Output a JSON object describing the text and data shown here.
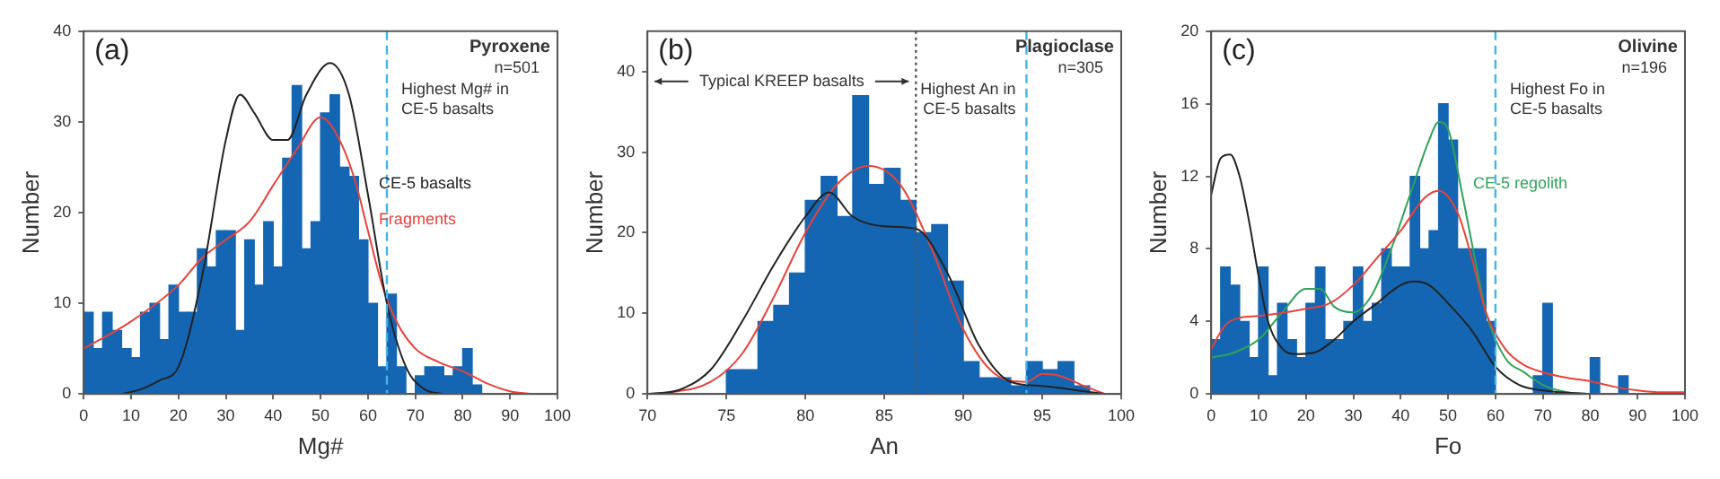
{
  "chart_data": [
    {
      "type": "histogram",
      "title": "(a)",
      "subtitle": "Pyroxene",
      "xlabel": "Mg#",
      "ylabel": "Number",
      "color": "#1466b3",
      "bins": [
        0,
        2,
        4,
        6,
        8,
        10,
        12,
        14,
        16,
        18,
        20,
        22,
        24,
        26,
        28,
        30,
        32,
        34,
        36,
        38,
        40,
        42,
        44,
        46,
        48,
        50,
        52,
        54,
        56,
        58,
        60,
        62,
        64,
        66,
        68,
        70,
        72,
        74,
        76,
        78,
        80,
        82,
        84
      ],
      "values": [
        9,
        5,
        9,
        7,
        5,
        4,
        9,
        10,
        6,
        12,
        9,
        9,
        16,
        14,
        18,
        18,
        7,
        17,
        12,
        19,
        14,
        26,
        34,
        16,
        19,
        31,
        33,
        25,
        24,
        17,
        10,
        3,
        11,
        3,
        0,
        2,
        3,
        3,
        2,
        3,
        5,
        1
      ],
      "series": [
        {
          "type": "line",
          "name": "CE-5 basalts",
          "color": "#222222",
          "x": [
            8,
            12,
            16,
            20,
            25,
            30,
            33,
            36,
            40,
            43,
            47,
            52,
            56,
            60,
            64,
            68,
            72,
            76
          ],
          "values": [
            0,
            0.5,
            1.5,
            3,
            13,
            28,
            33,
            31,
            28,
            28,
            33,
            36.5,
            33,
            22,
            10,
            3,
            0.5,
            0
          ]
        },
        {
          "type": "line",
          "name": "Fragments",
          "color": "#e8423a",
          "x": [
            0,
            10,
            20,
            25,
            30,
            35,
            40,
            45,
            50,
            53,
            57,
            60,
            63,
            66,
            70,
            75,
            80,
            85,
            90,
            95
          ],
          "values": [
            5,
            8,
            12,
            15,
            17,
            19,
            23,
            27,
            30.5,
            29,
            24,
            18,
            12,
            8,
            5,
            3.5,
            2.5,
            1.2,
            0.3,
            0
          ]
        }
      ],
      "xlim": [
        0,
        100
      ],
      "ylim": [
        0,
        40
      ],
      "xticks": [
        0,
        10,
        20,
        30,
        40,
        50,
        60,
        70,
        80,
        90,
        100
      ],
      "yticks": [
        0,
        10,
        20,
        30,
        40
      ],
      "ref_lines": [
        {
          "axis": "x",
          "value": 64,
          "label": "Highest Mg# in CE-5 basalts",
          "color": "#45b4e6",
          "line_style": "dashed"
        }
      ],
      "annotations": [
        "n=501"
      ],
      "grid": false,
      "legend": false
    },
    {
      "type": "histogram",
      "title": "(b)",
      "subtitle": "Plagioclase",
      "xlabel": "An",
      "ylabel": "Number",
      "color": "#1466b3",
      "bins": [
        75,
        76,
        77,
        78,
        79,
        80,
        81,
        82,
        83,
        84,
        85,
        86,
        87,
        88,
        89,
        90,
        91,
        92,
        93,
        94,
        95,
        96,
        97,
        98
      ],
      "values": [
        3,
        3,
        9,
        11,
        15,
        24,
        27,
        22,
        37,
        26,
        28,
        24,
        20,
        21,
        14,
        4,
        2,
        2,
        1,
        4,
        3,
        4,
        1
      ],
      "series": [
        {
          "type": "line",
          "color": "#222222",
          "x": [
            70,
            72,
            74,
            76,
            78,
            80,
            81.5,
            83,
            85,
            87,
            89,
            91,
            93,
            95,
            97,
            99
          ],
          "values": [
            0,
            0.5,
            3,
            9,
            16,
            22,
            25,
            22,
            20.8,
            20.5,
            15,
            6,
            1.5,
            1,
            0.5,
            0
          ]
        },
        {
          "type": "line",
          "color": "#e8423a",
          "x": [
            71,
            74,
            76,
            78,
            80,
            82,
            84,
            86,
            88,
            90,
            92,
            94,
            95,
            96,
            98,
            99
          ],
          "values": [
            0,
            1.5,
            5,
            12,
            20,
            26,
            28.3,
            26,
            18,
            8,
            2.5,
            1.5,
            2.5,
            2.3,
            0.7,
            0
          ]
        }
      ],
      "xlim": [
        70,
        100
      ],
      "ylim": [
        0,
        45
      ],
      "xticks": [
        70,
        75,
        80,
        85,
        90,
        95,
        100
      ],
      "yticks": [
        0,
        10,
        20,
        30,
        40
      ],
      "ref_lines": [
        {
          "axis": "x",
          "value": 87,
          "label": "Typical KREEP basalts",
          "color": "#555555",
          "line_style": "dotted"
        },
        {
          "axis": "x",
          "value": 94,
          "label": "Highest An in CE-5 basalts",
          "color": "#45b4e6",
          "line_style": "dashed"
        }
      ],
      "annotations": [
        "n=305"
      ],
      "grid": false,
      "legend": false
    },
    {
      "type": "histogram",
      "title": "(c)",
      "subtitle": "Olivine",
      "xlabel": "Fo",
      "ylabel": "Number",
      "color": "#1466b3",
      "bins": [
        0,
        2,
        4,
        6,
        8,
        10,
        12,
        14,
        16,
        18,
        20,
        22,
        24,
        26,
        28,
        30,
        32,
        34,
        36,
        38,
        40,
        42,
        44,
        46,
        48,
        50,
        52,
        54,
        56,
        58,
        60,
        62,
        64,
        66,
        68,
        70,
        72,
        74,
        76,
        78,
        80,
        82,
        84,
        86,
        88
      ],
      "values": [
        3,
        7,
        6,
        4,
        2,
        7,
        1,
        5,
        3,
        2,
        5,
        7,
        3,
        3,
        4,
        7,
        4,
        5,
        8,
        7,
        7,
        12,
        8,
        9,
        16,
        14,
        8,
        8,
        8,
        4,
        0,
        0,
        0,
        0,
        1,
        5,
        0,
        0,
        0,
        0,
        2,
        0,
        0,
        1
      ],
      "series": [
        {
          "type": "line",
          "color": "#222222",
          "x": [
            0,
            2,
            4,
            6,
            8,
            10,
            12,
            15,
            18,
            22,
            26,
            30,
            35,
            40,
            43,
            46,
            50,
            55,
            60,
            65,
            70,
            80
          ],
          "values": [
            11,
            13,
            13.2,
            12,
            9.5,
            6.5,
            4,
            2.5,
            2.2,
            2.3,
            3,
            4,
            5,
            6,
            6.2,
            6,
            5,
            3.5,
            1.5,
            0.5,
            0.2,
            0
          ]
        },
        {
          "type": "line",
          "color": "#e8423a",
          "x": [
            0,
            3,
            6,
            10,
            20,
            25,
            30,
            35,
            40,
            45,
            48,
            52,
            55,
            58,
            62,
            66,
            70,
            75,
            80,
            85,
            90,
            95,
            100
          ],
          "values": [
            2.5,
            3.8,
            4.2,
            4.3,
            4.7,
            5,
            6,
            7.5,
            9,
            10.8,
            11.2,
            10,
            7.5,
            4.5,
            2.5,
            1.6,
            1.2,
            0.9,
            0.7,
            0.4,
            0.2,
            0.1,
            0.1
          ]
        },
        {
          "type": "line",
          "name": "CE-5 regolith",
          "color": "#2fa35a",
          "x": [
            0,
            5,
            10,
            15,
            20,
            23,
            26,
            30,
            34,
            38,
            42,
            46,
            48,
            50,
            53,
            56,
            58,
            62,
            66,
            70,
            75,
            80
          ],
          "values": [
            2,
            2.3,
            3,
            4.5,
            5.8,
            5.8,
            4.8,
            4.5,
            5.5,
            8,
            11,
            14,
            15,
            14.6,
            11,
            7,
            4.5,
            2,
            1.2,
            0.5,
            0.1,
            0
          ]
        }
      ],
      "xlim": [
        0,
        100
      ],
      "ylim": [
        0,
        20
      ],
      "xticks": [
        0,
        10,
        20,
        30,
        40,
        50,
        60,
        70,
        80,
        90,
        100
      ],
      "yticks": [
        0,
        4,
        8,
        12,
        16,
        20
      ],
      "ref_lines": [
        {
          "axis": "x",
          "value": 60,
          "label": "Highest Fo in CE-5 basalts",
          "color": "#45b4e6",
          "line_style": "dashed"
        }
      ],
      "annotations": [
        "n=196"
      ],
      "grid": false,
      "legend": false
    }
  ]
}
